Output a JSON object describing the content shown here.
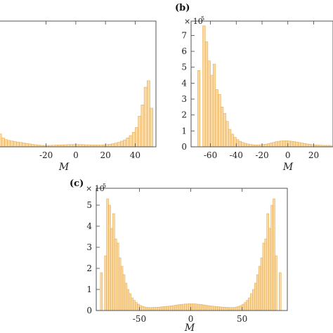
{
  "bar_color": "#fbd9a0",
  "bar_edge_color": "#e0a445",
  "chart_data": [
    {
      "type": "bar",
      "panel_label": "",
      "title": "",
      "xlabel": "M",
      "ylabel": "",
      "y_scale_label": "",
      "x_range": [
        -52,
        54
      ],
      "ylim": [
        0,
        780000
      ],
      "x_ticks": [
        -20,
        0,
        20,
        40
      ],
      "x_tick_labels": [
        "-20",
        "0",
        "20",
        "40"
      ],
      "y_ticks": [],
      "y_tick_labels": [],
      "bin_width": 2,
      "x": [
        -51,
        -49,
        -47,
        -45,
        -43,
        -41,
        -39,
        -37,
        -35,
        -33,
        -31,
        -29,
        -27,
        -25,
        -23,
        -21,
        -19,
        -17,
        -15,
        -13,
        -11,
        -9,
        -7,
        -5,
        -3,
        -1,
        1,
        3,
        5,
        7,
        9,
        11,
        13,
        15,
        17,
        19,
        21,
        23,
        25,
        27,
        29,
        31,
        33,
        35,
        37,
        39,
        41,
        43,
        45,
        47,
        49,
        51
      ],
      "values": [
        80000,
        55000,
        45000,
        40000,
        36000,
        33000,
        30000,
        27000,
        24000,
        21000,
        18000,
        15000,
        13000,
        11000,
        9000,
        8500,
        8500,
        9000,
        10000,
        11000,
        11500,
        12000,
        13000,
        13500,
        14000,
        14500,
        14500,
        14000,
        13500,
        13000,
        12500,
        12000,
        11500,
        11000,
        11000,
        12000,
        14000,
        16000,
        19000,
        23000,
        28000,
        35000,
        43000,
        55000,
        70000,
        90000,
        120000,
        190000,
        260000,
        370000,
        410000,
        240000
      ]
    },
    {
      "type": "bar",
      "panel_label": "(b)",
      "title": "",
      "xlabel": "M",
      "ylabel": "",
      "y_scale_label": "× 10",
      "y_scale_exp": "5",
      "x_range": [
        -75,
        35
      ],
      "ylim": [
        0,
        790000
      ],
      "x_ticks": [
        -60,
        -40,
        -20,
        0,
        20
      ],
      "x_tick_labels": [
        "-60",
        "-40",
        "-20",
        "0",
        "20"
      ],
      "y_ticks": [
        0,
        100000,
        200000,
        300000,
        400000,
        500000,
        600000,
        700000
      ],
      "y_tick_labels": [
        "0",
        "1",
        "2",
        "3",
        "4",
        "5",
        "6",
        "7"
      ],
      "bin_width": 2,
      "x": [
        -69,
        -67,
        -65,
        -63,
        -61,
        -59,
        -57,
        -55,
        -53,
        -51,
        -49,
        -47,
        -45,
        -43,
        -41,
        -39,
        -37,
        -35,
        -33,
        -31,
        -29,
        -27,
        -25,
        -23,
        -21,
        -19,
        -17,
        -15,
        -13,
        -11,
        -9,
        -7,
        -5,
        -3,
        -1,
        1,
        3,
        5,
        7,
        9,
        11,
        13,
        15,
        17,
        19,
        21,
        23,
        25,
        27,
        29,
        31,
        33
      ],
      "values": [
        480000,
        0,
        760000,
        660000,
        540000,
        450000,
        520000,
        360000,
        330000,
        250000,
        210000,
        160000,
        110000,
        80000,
        60000,
        45000,
        35000,
        28000,
        22000,
        18000,
        15000,
        13000,
        12000,
        12000,
        13000,
        15000,
        17000,
        20000,
        24000,
        28000,
        32000,
        35000,
        37000,
        38000,
        38000,
        37000,
        35000,
        33000,
        30000,
        27000,
        24000,
        21000,
        18000,
        16000,
        14000,
        12000,
        11000,
        10000,
        9500,
        9000,
        9000,
        9000
      ]
    },
    {
      "type": "bar",
      "panel_label": "(c)",
      "title": "",
      "xlabel": "M",
      "ylabel": "",
      "y_scale_label": "× 10",
      "y_scale_exp": "5",
      "x_range": [
        -92,
        94
      ],
      "ylim": [
        0,
        580000
      ],
      "x_ticks": [
        -50,
        0,
        50
      ],
      "x_tick_labels": [
        "-50",
        "0",
        "50"
      ],
      "y_ticks": [
        0,
        100000,
        200000,
        300000,
        400000,
        500000
      ],
      "y_tick_labels": [
        "0",
        "1",
        "2",
        "3",
        "4",
        "5"
      ],
      "bin_width": 2,
      "x": [
        -87,
        -85,
        -83,
        -81,
        -79,
        -77,
        -75,
        -73,
        -71,
        -69,
        -67,
        -65,
        -63,
        -61,
        -59,
        -57,
        -55,
        -53,
        -51,
        -49,
        -47,
        -45,
        -43,
        -41,
        -39,
        -37,
        -35,
        -33,
        -31,
        -29,
        -27,
        -25,
        -23,
        -21,
        -19,
        -17,
        -15,
        -13,
        -11,
        -9,
        -7,
        -5,
        -3,
        -1,
        1,
        3,
        5,
        7,
        9,
        11,
        13,
        15,
        17,
        19,
        21,
        23,
        25,
        27,
        29,
        31,
        33,
        35,
        37,
        39,
        41,
        43,
        45,
        47,
        49,
        51,
        53,
        55,
        57,
        59,
        61,
        63,
        65,
        67,
        69,
        71,
        73,
        75,
        77,
        79,
        81,
        83,
        85,
        87
      ],
      "values": [
        180000,
        0,
        260000,
        530000,
        500000,
        390000,
        460000,
        340000,
        320000,
        250000,
        210000,
        170000,
        130000,
        100000,
        80000,
        60000,
        48000,
        38000,
        30000,
        24000,
        20000,
        17000,
        15000,
        14000,
        14000,
        14500,
        15000,
        15500,
        16000,
        17000,
        18000,
        19000,
        20000,
        21000,
        22000,
        23500,
        25000,
        26500,
        28000,
        29000,
        30000,
        31000,
        31500,
        32000,
        32000,
        31500,
        31000,
        30000,
        29000,
        28000,
        26500,
        25000,
        23500,
        22000,
        21000,
        20000,
        19000,
        18000,
        17000,
        16000,
        15500,
        15000,
        14500,
        14000,
        14000,
        15000,
        17000,
        20000,
        24000,
        30000,
        38000,
        48000,
        60000,
        80000,
        100000,
        130000,
        170000,
        210000,
        250000,
        320000,
        340000,
        460000,
        390000,
        500000,
        530000,
        260000,
        0,
        180000
      ]
    }
  ]
}
